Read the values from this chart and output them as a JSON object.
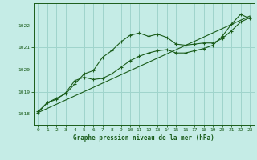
{
  "title": "Graphe pression niveau de la mer (hPa)",
  "background_color": "#c5ece6",
  "grid_color": "#9fd4cc",
  "text_color": "#1a5c1a",
  "line_color": "#1a5c1a",
  "xlim": [
    -0.5,
    23.5
  ],
  "ylim": [
    1017.5,
    1023.0
  ],
  "yticks": [
    1018,
    1019,
    1020,
    1021,
    1022
  ],
  "xticks": [
    0,
    1,
    2,
    3,
    4,
    5,
    6,
    7,
    8,
    9,
    10,
    11,
    12,
    13,
    14,
    15,
    16,
    17,
    18,
    19,
    20,
    21,
    22,
    23
  ],
  "series1_x": [
    0,
    1,
    2,
    3,
    4,
    5,
    6,
    7,
    8,
    9,
    10,
    11,
    12,
    13,
    14,
    15,
    16,
    17,
    18,
    19,
    20,
    21,
    22,
    23
  ],
  "series1_y": [
    1018.1,
    1018.5,
    1018.7,
    1018.9,
    1019.35,
    1019.8,
    1019.95,
    1020.55,
    1020.85,
    1021.25,
    1021.55,
    1021.65,
    1021.5,
    1021.6,
    1021.45,
    1021.15,
    1021.1,
    1021.15,
    1021.2,
    1021.2,
    1021.4,
    1021.75,
    1022.15,
    1022.35
  ],
  "series2_x": [
    0,
    1,
    2,
    3,
    4,
    5,
    6,
    7,
    8,
    9,
    10,
    11,
    12,
    13,
    14,
    15,
    16,
    17,
    18,
    19,
    20,
    21,
    22,
    23
  ],
  "series2_y": [
    1018.05,
    1018.5,
    1018.65,
    1018.95,
    1019.5,
    1019.65,
    1019.55,
    1019.6,
    1019.8,
    1020.1,
    1020.4,
    1020.6,
    1020.75,
    1020.85,
    1020.9,
    1020.75,
    1020.75,
    1020.85,
    1020.95,
    1021.1,
    1021.5,
    1022.05,
    1022.5,
    1022.3
  ],
  "series3_x": [
    0,
    23
  ],
  "series3_y": [
    1018.05,
    1022.42
  ]
}
